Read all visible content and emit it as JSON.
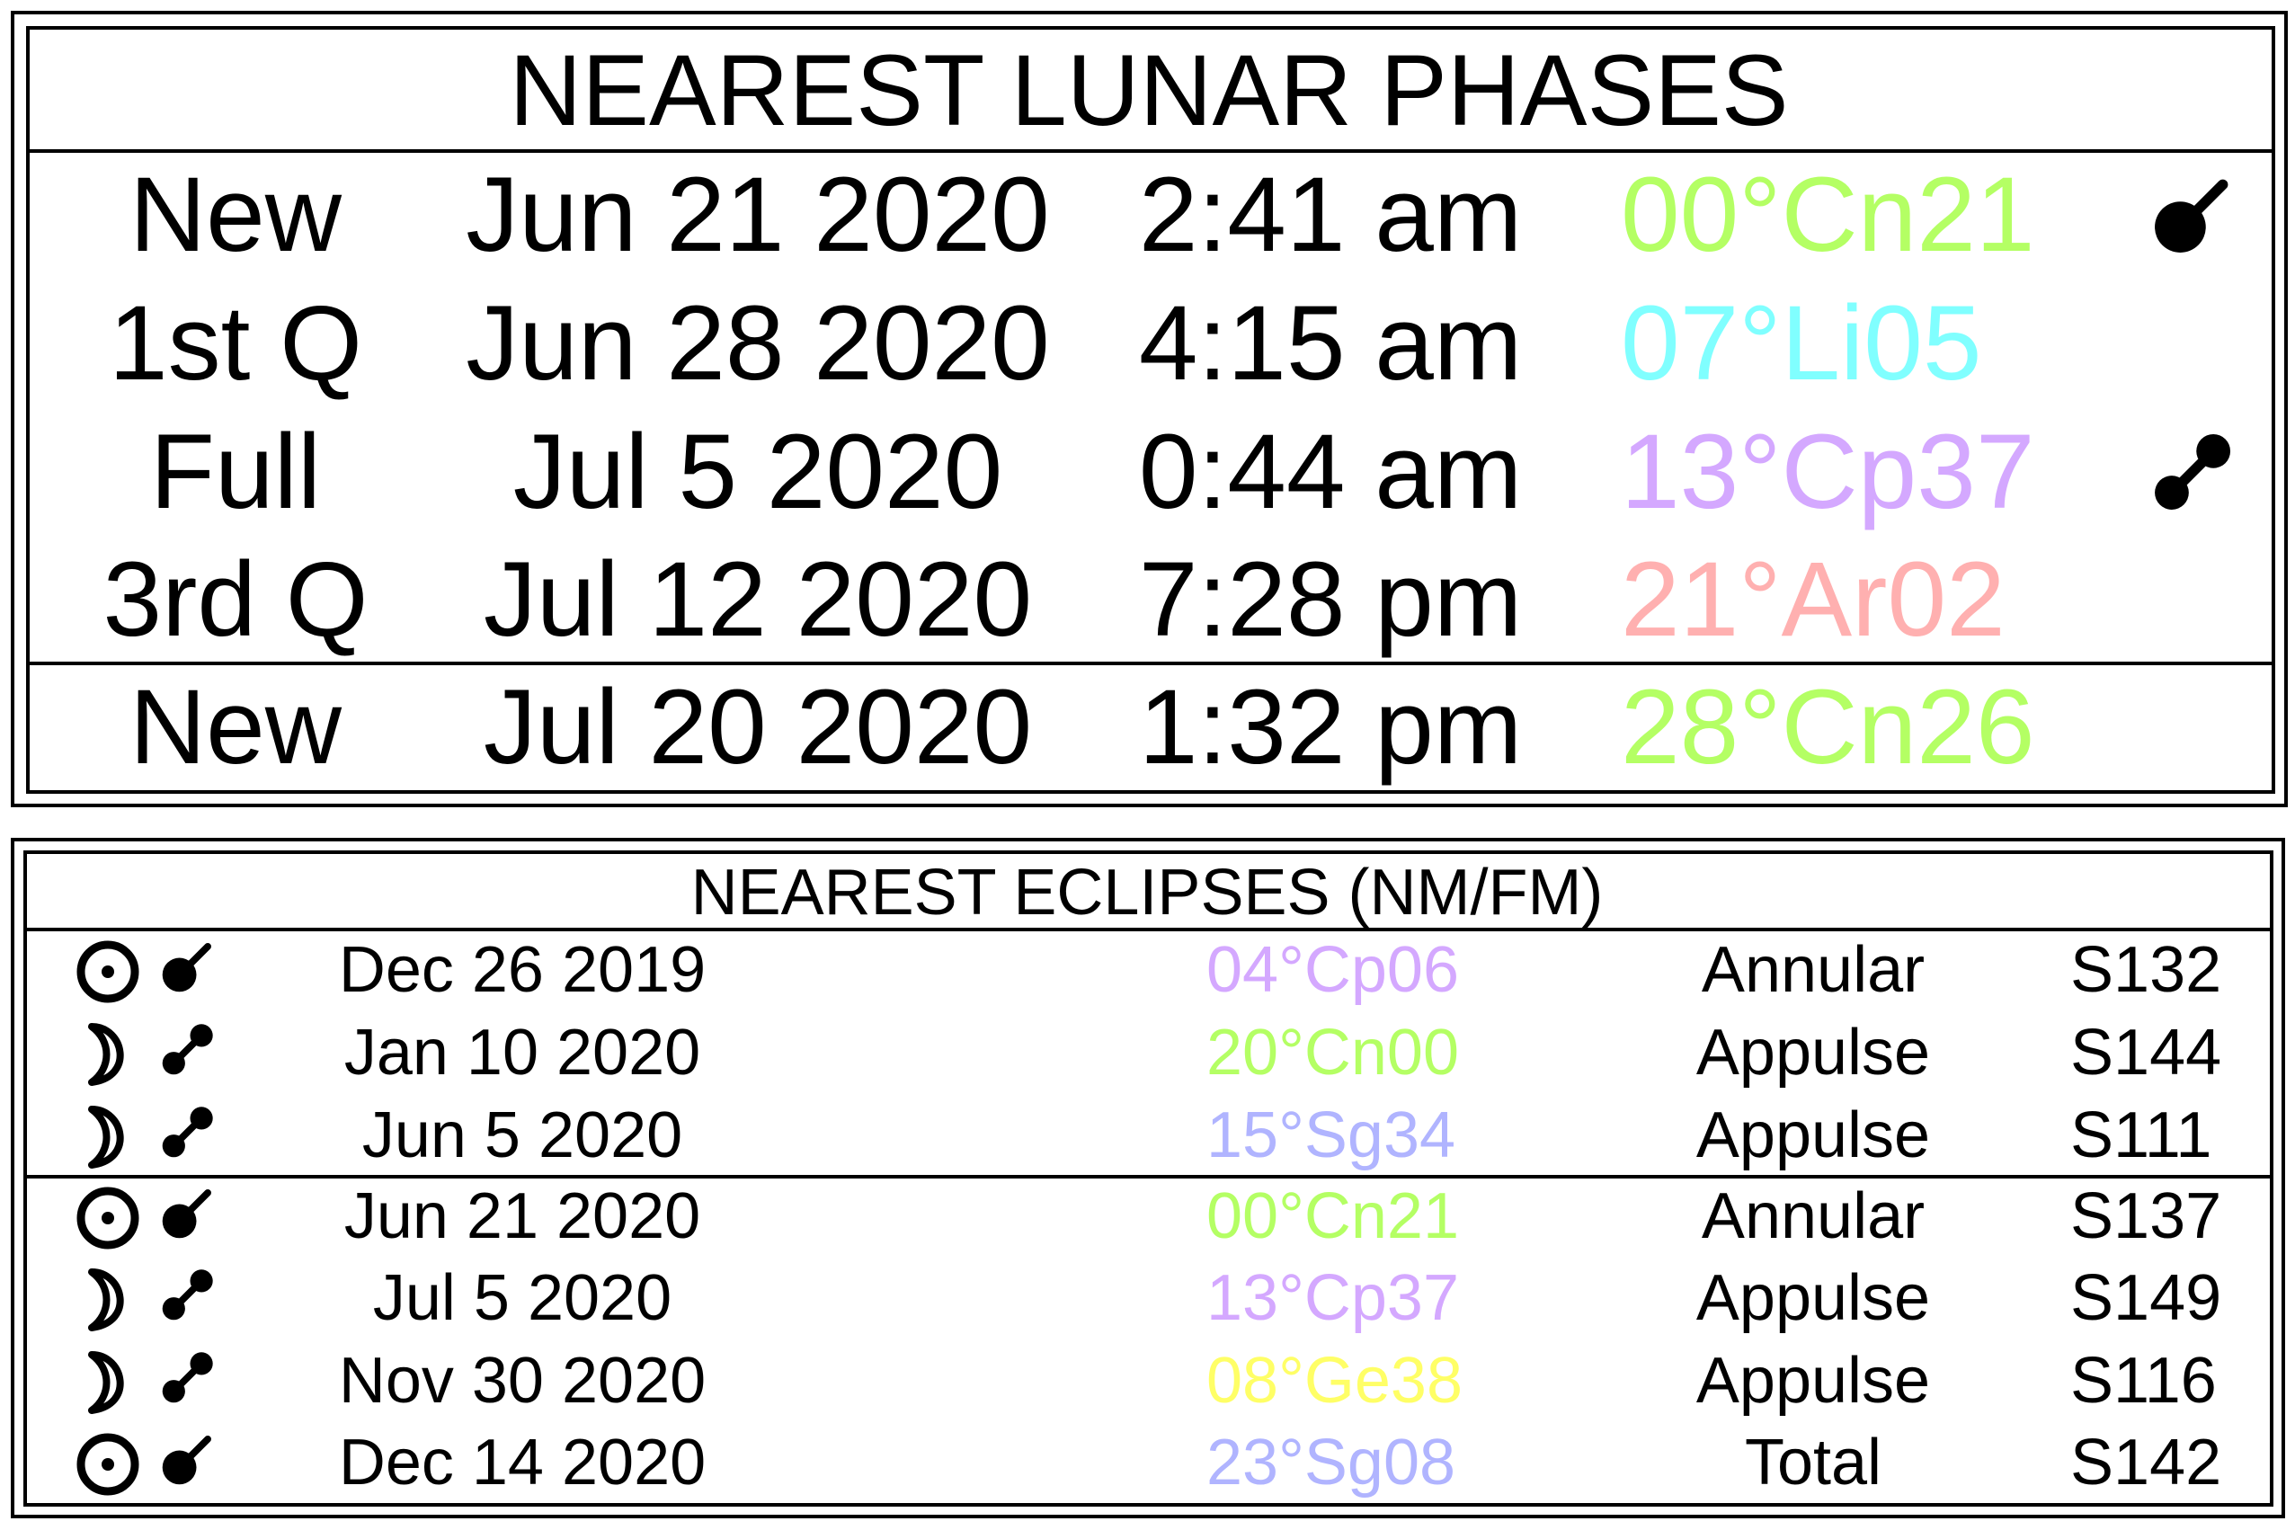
{
  "lunar_phases": {
    "title": "NEAREST LUNAR PHASES",
    "rows": [
      {
        "phase": "New",
        "date": "Jun 21 2020",
        "time": "2:41 am",
        "position": "00°Cn21",
        "color": "#b4ff64",
        "eclipse_icon": "solar-eclipse-icon"
      },
      {
        "phase": "1st Q",
        "date": "Jun 28 2020",
        "time": "4:15 am",
        "position": "07°Li05",
        "color": "#80ffff",
        "eclipse_icon": ""
      },
      {
        "phase": "Full",
        "date": "Jul 5 2020",
        "time": "0:44 am",
        "position": "13°Cp37",
        "color": "#d4a8ff",
        "eclipse_icon": "lunar-eclipse-icon"
      },
      {
        "phase": "3rd Q",
        "date": "Jul 12 2020",
        "time": "7:28 pm",
        "position": "21°Ar02",
        "color": "#ffb0b0",
        "eclipse_icon": ""
      },
      {
        "phase": "New",
        "date": "Jul 20 2020",
        "time": "1:32 pm",
        "position": "28°Cn26",
        "color": "#b4ff64",
        "eclipse_icon": ""
      }
    ]
  },
  "eclipses": {
    "title": "NEAREST ECLIPSES (NM/FM)",
    "rows": [
      {
        "body_icon": "sun-icon",
        "eclipse_icon": "solar-eclipse-icon",
        "date": "Dec 26 2019",
        "position": "04°Cp06",
        "color": "#d4a8ff",
        "type": "Annular",
        "saros": "S132"
      },
      {
        "body_icon": "moon-icon",
        "eclipse_icon": "lunar-eclipse-icon",
        "date": "Jan 10 2020",
        "position": "20°Cn00",
        "color": "#b4ff64",
        "type": "Appulse",
        "saros": "S144"
      },
      {
        "body_icon": "moon-icon",
        "eclipse_icon": "lunar-eclipse-icon",
        "date": "Jun 5 2020",
        "position": "15°Sg34",
        "color": "#b0b4ff",
        "type": "Appulse",
        "saros": "S111"
      },
      {
        "body_icon": "sun-icon",
        "eclipse_icon": "solar-eclipse-icon",
        "date": "Jun 21 2020",
        "position": "00°Cn21",
        "color": "#b4ff64",
        "type": "Annular",
        "saros": "S137"
      },
      {
        "body_icon": "moon-icon",
        "eclipse_icon": "lunar-eclipse-icon",
        "date": "Jul 5 2020",
        "position": "13°Cp37",
        "color": "#d4a8ff",
        "type": "Appulse",
        "saros": "S149"
      },
      {
        "body_icon": "moon-icon",
        "eclipse_icon": "lunar-eclipse-icon",
        "date": "Nov 30 2020",
        "position": "08°Ge38",
        "color": "#ffff66",
        "type": "Appulse",
        "saros": "S116"
      },
      {
        "body_icon": "sun-icon",
        "eclipse_icon": "solar-eclipse-icon",
        "date": "Dec 14 2020",
        "position": "23°Sg08",
        "color": "#b0b4ff",
        "type": "Total",
        "saros": "S142"
      }
    ]
  }
}
